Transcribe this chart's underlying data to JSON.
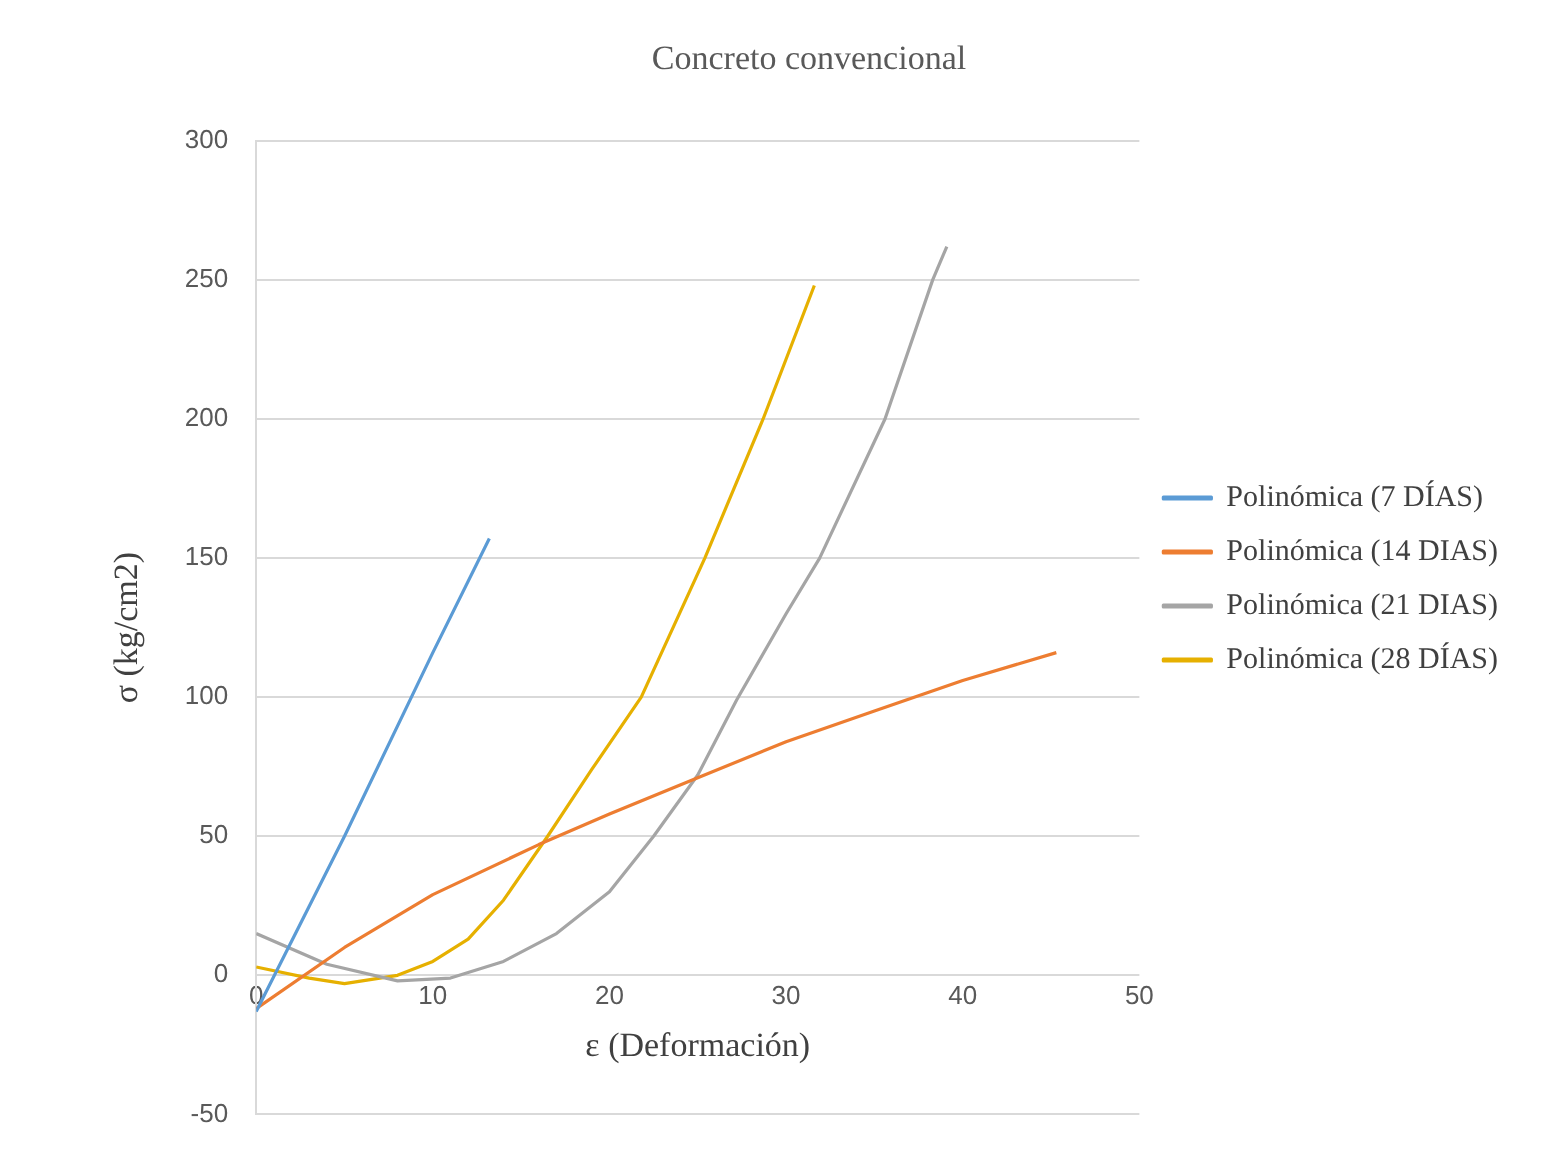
{
  "chart_data": {
    "type": "line",
    "title": "Concreto convencional",
    "xlabel": "ε (Deformación)",
    "ylabel": "σ (kg/cm2)",
    "xlim": [
      0,
      50
    ],
    "xticks": [
      0,
      10,
      20,
      30,
      40,
      50
    ],
    "ylim": [
      -50,
      300
    ],
    "yticks": [
      -50,
      0,
      50,
      100,
      150,
      200,
      250,
      300
    ],
    "grid": "y",
    "legend": "right",
    "marker": "none",
    "line_style": "solid",
    "series": [
      {
        "name": "Polinómica (7 DÍAS)",
        "color": "#5b9bd5",
        "x": [
          0,
          5,
          10,
          13.2
        ],
        "values": [
          -13,
          50,
          116,
          157
        ]
      },
      {
        "name": "Polinómica (14 DIAS)",
        "color": "#ed7d31",
        "x": [
          0,
          5,
          10,
          16,
          20,
          25,
          30,
          35,
          40,
          45.3
        ],
        "values": [
          -12,
          10,
          29,
          47,
          58,
          71,
          84,
          95,
          106,
          116
        ]
      },
      {
        "name": "Polinómica (21 DIAS)",
        "color": "#a5a5a5",
        "x": [
          0,
          4,
          8,
          11,
          14,
          17,
          20,
          22.5,
          25,
          27.2,
          30,
          31.9,
          35.6,
          38.3,
          39.1
        ],
        "values": [
          15,
          4,
          -2,
          -1,
          5,
          15,
          30,
          50,
          72,
          99,
          130,
          150,
          200,
          250,
          262
        ]
      },
      {
        "name": "Polinómica (28 DÍAS)",
        "color": "#e6b000",
        "x": [
          0,
          3,
          5,
          8,
          10,
          12,
          14,
          16.5,
          19,
          21.8,
          25.4,
          28.7,
          31.6
        ],
        "values": [
          3,
          -1,
          -3,
          0,
          5,
          13,
          27,
          50,
          74,
          100,
          150,
          200,
          248
        ]
      }
    ]
  }
}
